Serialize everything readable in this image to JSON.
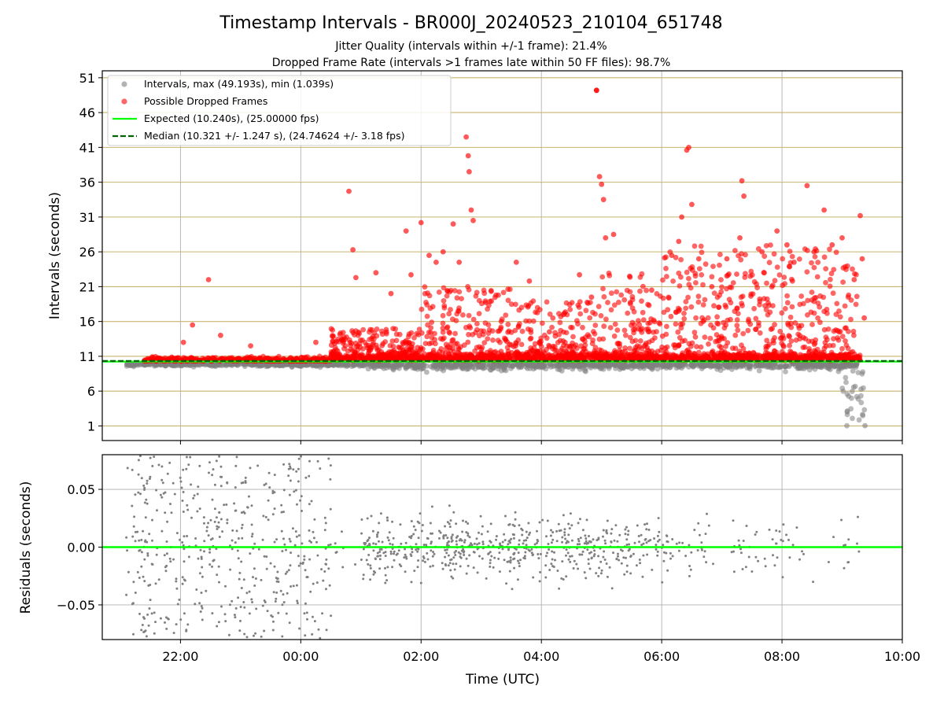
{
  "chart_data": [
    {
      "type": "scatter",
      "title": "Timestamp Intervals - BR000J_20240523_210104_651748",
      "subtitle_lines": [
        "Jitter Quality (intervals within +/-1 frame): 21.4%",
        "Dropped Frame Rate (intervals >1 frames late within 50 FF files): 98.7%"
      ],
      "ylabel": "Intervals (seconds)",
      "x_unit": "hours since 21:00 UTC (display as HH:MM)",
      "xlim": [
        "20:42",
        "10:00"
      ],
      "x_ticks": [
        "22:00",
        "00:00",
        "02:00",
        "04:00",
        "06:00",
        "08:00",
        "10:00"
      ],
      "ylim": [
        -1.1,
        52.0
      ],
      "y_ticks": [
        "1",
        "6",
        "11",
        "16",
        "21",
        "26",
        "31",
        "36",
        "41",
        "46",
        "51"
      ],
      "grid": true,
      "horizontal_grid_color": "#c8b46e",
      "legend_position": "top-left",
      "series": [
        {
          "name": "Intervals, max (49.193s), min (1.039s)",
          "color": "#808080",
          "marker": "circle",
          "summary": {
            "max": 49.193,
            "min": 1.039,
            "bulk_range": [
              8.5,
              11.0
            ]
          }
        },
        {
          "name": "Possible Dropped Frames",
          "color": "#ff0000",
          "marker": "circle",
          "sample_points": [
            [
              "22:12",
              15.5
            ],
            [
              "22:28",
              22.0
            ],
            [
              "22:03",
              13.0
            ],
            [
              "22:40",
              14.0
            ],
            [
              "23:10",
              12.5
            ],
            [
              "00:15",
              13.0
            ],
            [
              "00:48",
              34.7
            ],
            [
              "00:52",
              26.3
            ],
            [
              "00:55",
              22.3
            ],
            [
              "01:15",
              23.0
            ],
            [
              "01:30",
              20.0
            ],
            [
              "01:45",
              29.0
            ],
            [
              "01:50",
              22.7
            ],
            [
              "02:00",
              30.2
            ],
            [
              "02:08",
              25.5
            ],
            [
              "02:15",
              24.5
            ],
            [
              "02:22",
              26.0
            ],
            [
              "02:32",
              30.0
            ],
            [
              "02:38",
              24.5
            ],
            [
              "02:45",
              42.5
            ],
            [
              "02:47",
              39.8
            ],
            [
              "02:48",
              37.5
            ],
            [
              "02:50",
              32.0
            ],
            [
              "02:52",
              30.5
            ],
            [
              "03:20",
              16.0
            ],
            [
              "03:35",
              24.5
            ],
            [
              "03:48",
              21.8
            ],
            [
              "04:08",
              14.5
            ],
            [
              "04:22",
              17.0
            ],
            [
              "04:38",
              22.7
            ],
            [
              "04:50",
              19.5
            ],
            [
              "04:55",
              49.2
            ],
            [
              "04:58",
              36.8
            ],
            [
              "05:00",
              35.7
            ],
            [
              "05:02",
              33.5
            ],
            [
              "05:04",
              28.0
            ],
            [
              "05:12",
              28.5
            ],
            [
              "05:28",
              22.5
            ],
            [
              "05:50",
              20.5
            ],
            [
              "06:10",
              25.5
            ],
            [
              "06:17",
              27.5
            ],
            [
              "06:20",
              31.0
            ],
            [
              "06:25",
              40.6
            ],
            [
              "06:27",
              41.0
            ],
            [
              "06:30",
              32.8
            ],
            [
              "06:37",
              25.0
            ],
            [
              "06:50",
              21.0
            ],
            [
              "07:05",
              25.0
            ],
            [
              "07:18",
              28.0
            ],
            [
              "07:20",
              36.2
            ],
            [
              "07:22",
              34.0
            ],
            [
              "07:40",
              26.0
            ],
            [
              "07:55",
              29.0
            ],
            [
              "08:05",
              27.0
            ],
            [
              "08:12",
              24.5
            ],
            [
              "08:25",
              35.5
            ],
            [
              "08:32",
              26.0
            ],
            [
              "08:42",
              32.0
            ],
            [
              "08:50",
              27.0
            ],
            [
              "09:00",
              28.0
            ],
            [
              "09:12",
              22.0
            ],
            [
              "09:18",
              31.2
            ],
            [
              "09:20",
              25.0
            ],
            [
              "09:22",
              16.5
            ]
          ]
        },
        {
          "name": "Expected (10.240s), (25.00000 fps)",
          "color": "#00ff00",
          "line_style": "solid",
          "value": 10.24
        },
        {
          "name": "Median (10.321 +/- 1.247 s), (24.74624 +/- 3.18 fps)",
          "color": "#006400",
          "line_style": "dashed",
          "value": 10.321
        }
      ]
    },
    {
      "type": "scatter",
      "xlabel": "Time (UTC)",
      "ylabel": "Residuals (seconds)",
      "xlim": [
        "20:42",
        "10:00"
      ],
      "x_ticks": [
        "22:00",
        "00:00",
        "02:00",
        "04:00",
        "06:00",
        "08:00",
        "10:00"
      ],
      "ylim": [
        -0.08,
        0.08
      ],
      "y_ticks": [
        "0.05",
        "0.00",
        "−0.05"
      ],
      "grid": true,
      "series": [
        {
          "color": "#808080",
          "marker": "dot",
          "summary": {
            "range": [
              -0.08,
              0.08
            ]
          }
        },
        {
          "color": "#00ff00",
          "line_style": "solid",
          "value": 0.0
        }
      ]
    }
  ]
}
